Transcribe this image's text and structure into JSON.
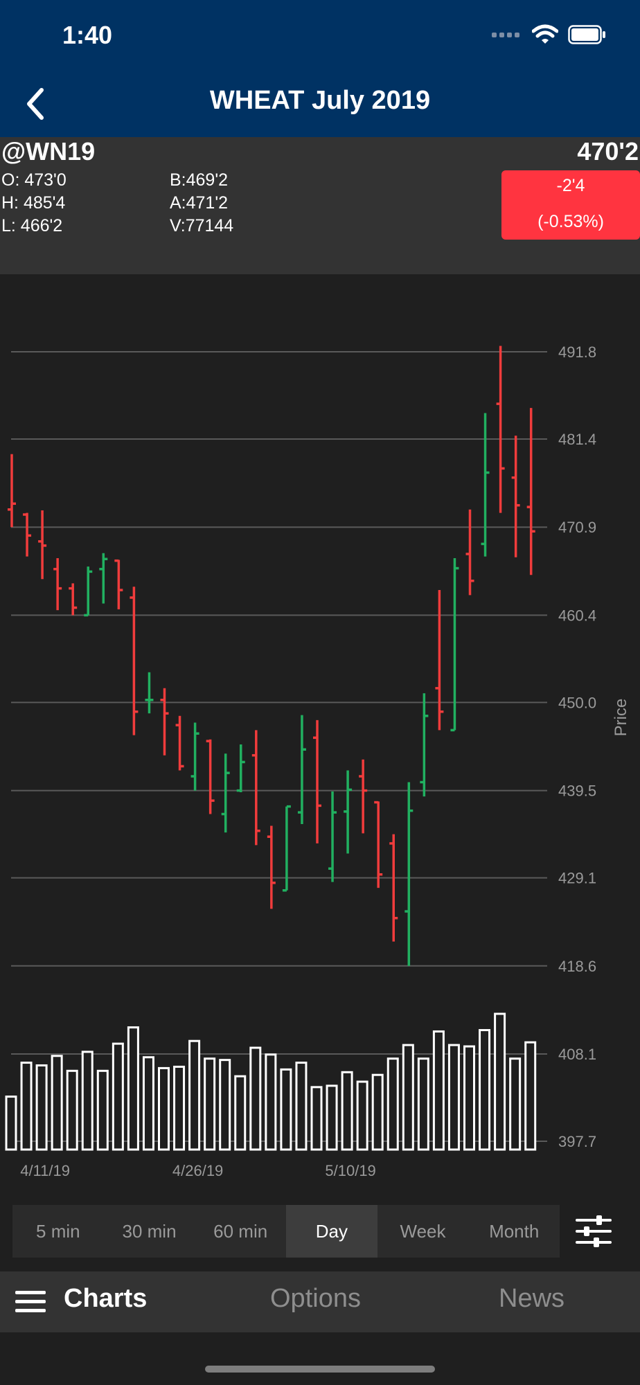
{
  "status_bar": {
    "time": "1:40",
    "icons": [
      "signal-icon",
      "wifi-icon",
      "battery-icon"
    ]
  },
  "nav": {
    "title": "WHEAT July 2019",
    "back_icon": "chevron-left-icon"
  },
  "quote": {
    "symbol": "@WN19",
    "last": "470'2",
    "open": "O: 473'0",
    "high": "H: 485'4",
    "low": "L:  466'2",
    "bid": "B:469'2",
    "ask": "A:471'2",
    "volume": "V:77144",
    "change": "-2'4",
    "change_pct": "(-0.53%)",
    "change_color": "#ff3440"
  },
  "chart_data": {
    "type": "ohlc",
    "ylabel": "Price",
    "y_ticks": [
      491.8,
      481.4,
      470.9,
      460.4,
      450.0,
      439.5,
      429.1,
      418.6,
      408.1,
      397.7
    ],
    "y_tick_labels": [
      "491.8",
      "481.4",
      "470.9",
      "460.4",
      "450.0",
      "439.5",
      "429.1",
      "418.6",
      "408.1",
      "397.7"
    ],
    "ylim": [
      397.7,
      491.8
    ],
    "x_tick_labels": [
      "4/11/19",
      "4/26/19",
      "5/10/19"
    ],
    "x_tick_index": [
      2,
      12,
      22
    ],
    "up_color": "#21b060",
    "down_color": "#f03c3c",
    "bars": [
      {
        "o": 473.0,
        "h": 479.6,
        "l": 470.9,
        "c": 473.7,
        "dir": "down"
      },
      {
        "o": 472.4,
        "h": 472.6,
        "l": 467.4,
        "c": 469.9,
        "dir": "down"
      },
      {
        "o": 469.2,
        "h": 472.9,
        "l": 464.7,
        "c": 468.7,
        "dir": "down"
      },
      {
        "o": 465.9,
        "h": 467.2,
        "l": 461.0,
        "c": 463.6,
        "dir": "down"
      },
      {
        "o": 463.6,
        "h": 464.2,
        "l": 460.4,
        "c": 461.3,
        "dir": "down"
      },
      {
        "o": 460.4,
        "h": 466.2,
        "l": 460.4,
        "c": 465.6,
        "dir": "up"
      },
      {
        "o": 465.9,
        "h": 467.8,
        "l": 461.8,
        "c": 467.1,
        "dir": "up"
      },
      {
        "o": 466.9,
        "h": 467.0,
        "l": 461.1,
        "c": 463.4,
        "dir": "down"
      },
      {
        "o": 462.5,
        "h": 463.8,
        "l": 446.1,
        "c": 448.9,
        "dir": "down"
      },
      {
        "o": 450.3,
        "h": 453.6,
        "l": 448.7,
        "c": 450.3,
        "dir": "up"
      },
      {
        "o": 450.3,
        "h": 451.7,
        "l": 443.7,
        "c": 448.7,
        "dir": "down"
      },
      {
        "o": 447.3,
        "h": 448.4,
        "l": 441.9,
        "c": 442.4,
        "dir": "down"
      },
      {
        "o": 441.2,
        "h": 447.6,
        "l": 439.5,
        "c": 446.3,
        "dir": "up"
      },
      {
        "o": 445.4,
        "h": 445.6,
        "l": 436.7,
        "c": 438.3,
        "dir": "down"
      },
      {
        "o": 436.7,
        "h": 443.9,
        "l": 434.5,
        "c": 441.6,
        "dir": "up"
      },
      {
        "o": 439.5,
        "h": 445.0,
        "l": 439.3,
        "c": 442.9,
        "dir": "up"
      },
      {
        "o": 443.7,
        "h": 446.7,
        "l": 433.0,
        "c": 434.7,
        "dir": "down"
      },
      {
        "o": 434.0,
        "h": 435.3,
        "l": 425.4,
        "c": 428.5,
        "dir": "down"
      },
      {
        "o": 427.6,
        "h": 437.6,
        "l": 427.6,
        "c": 437.6,
        "dir": "up"
      },
      {
        "o": 436.9,
        "h": 448.5,
        "l": 435.5,
        "c": 444.4,
        "dir": "up"
      },
      {
        "o": 445.8,
        "h": 447.9,
        "l": 433.2,
        "c": 437.7,
        "dir": "down"
      },
      {
        "o": 430.2,
        "h": 439.4,
        "l": 428.6,
        "c": 436.9,
        "dir": "up"
      },
      {
        "o": 437.0,
        "h": 441.9,
        "l": 432.0,
        "c": 439.6,
        "dir": "up"
      },
      {
        "o": 441.2,
        "h": 443.2,
        "l": 434.4,
        "c": 439.5,
        "dir": "down"
      },
      {
        "o": 438.1,
        "h": 438.2,
        "l": 427.9,
        "c": 429.5,
        "dir": "down"
      },
      {
        "o": 433.2,
        "h": 434.3,
        "l": 421.5,
        "c": 424.3,
        "dir": "down"
      },
      {
        "o": 425.1,
        "h": 440.5,
        "l": 418.6,
        "c": 437.1,
        "dir": "up"
      },
      {
        "o": 440.5,
        "h": 451.1,
        "l": 438.8,
        "c": 448.4,
        "dir": "up"
      },
      {
        "o": 451.7,
        "h": 463.4,
        "l": 446.7,
        "c": 448.9,
        "dir": "down"
      },
      {
        "o": 446.7,
        "h": 467.2,
        "l": 446.7,
        "c": 466.0,
        "dir": "up"
      },
      {
        "o": 467.7,
        "h": 473.0,
        "l": 462.8,
        "c": 464.5,
        "dir": "down"
      },
      {
        "o": 468.9,
        "h": 484.5,
        "l": 467.4,
        "c": 477.4,
        "dir": "up"
      },
      {
        "o": 485.6,
        "h": 492.5,
        "l": 472.6,
        "c": 477.9,
        "dir": "down"
      },
      {
        "o": 476.8,
        "h": 481.8,
        "l": 467.3,
        "c": 473.5,
        "dir": "down"
      },
      {
        "o": 473.3,
        "h": 485.1,
        "l": 465.2,
        "c": 470.4,
        "dir": "down"
      }
    ],
    "volume_relative": [
      0.39,
      0.64,
      0.62,
      0.69,
      0.58,
      0.72,
      0.58,
      0.78,
      0.9,
      0.68,
      0.6,
      0.61,
      0.8,
      0.67,
      0.66,
      0.54,
      0.75,
      0.7,
      0.59,
      0.64,
      0.46,
      0.47,
      0.57,
      0.5,
      0.55,
      0.67,
      0.77,
      0.67,
      0.87,
      0.77,
      0.76,
      0.88,
      1.0,
      0.67,
      0.79
    ]
  },
  "intervals": [
    "5 min",
    "30 min",
    "60 min",
    "Day",
    "Week",
    "Month"
  ],
  "active_interval": "Day",
  "settings_icon": "sliders-icon",
  "tabs": {
    "charts": "Charts",
    "options": "Options",
    "news": "News",
    "menu_icon": "hamburger-menu-icon"
  }
}
